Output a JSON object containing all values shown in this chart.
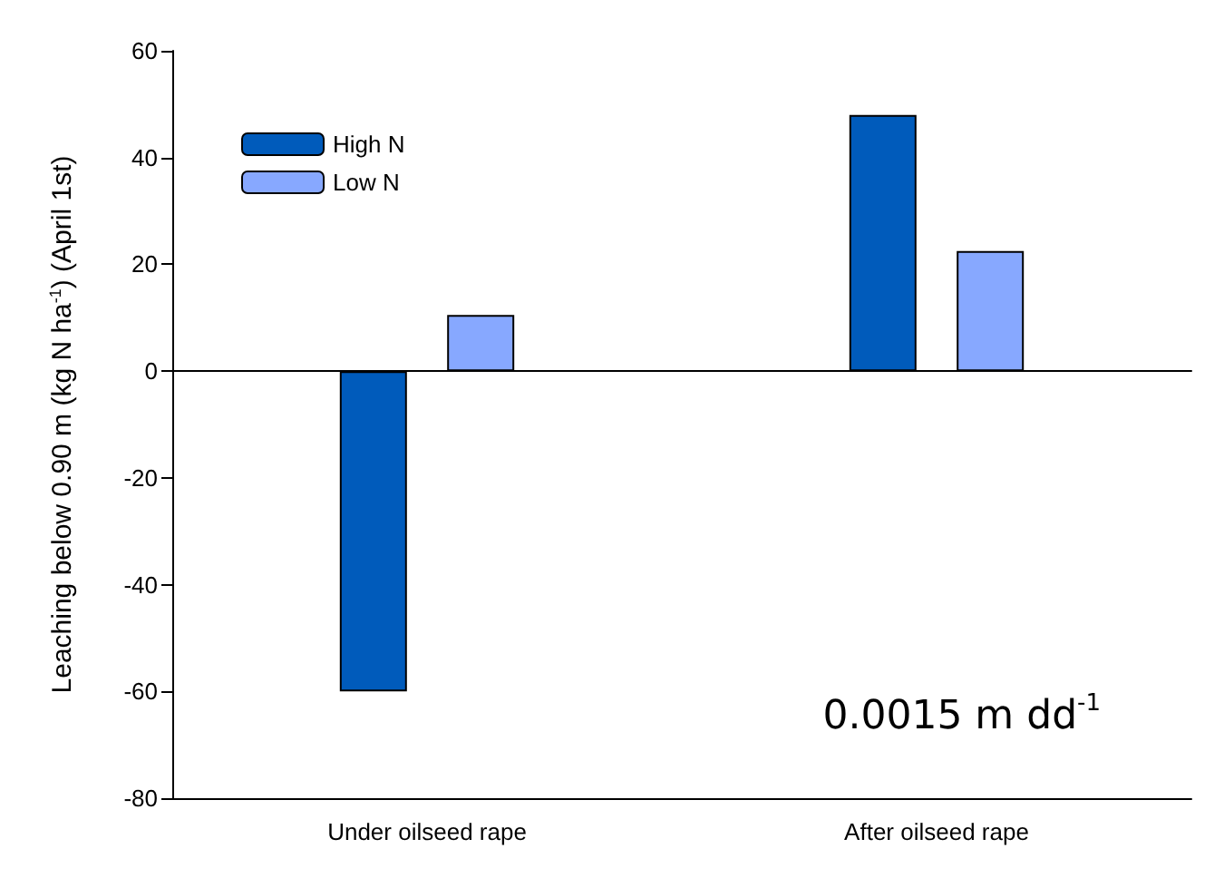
{
  "chart_data": {
    "type": "bar",
    "ylabel": "Leaching below 0.90 m (kg N ha$^{-1}$) (April 1st)",
    "categories": [
      "Under oilseed rape",
      "After oilseed rape"
    ],
    "series": [
      {
        "name": "High N",
        "color": "#005bbb",
        "values": [
          -60,
          48
        ]
      },
      {
        "name": "Low N",
        "color": "#87a8ff",
        "values": [
          10.5,
          22.5
        ]
      }
    ],
    "ylim": [
      -80,
      60
    ],
    "yticks": [
      -80,
      -60,
      -40,
      -20,
      0,
      20,
      40,
      60
    ],
    "legend": "top left",
    "annotations": [
      "0.0015 m dd$^{-1}$"
    ]
  }
}
